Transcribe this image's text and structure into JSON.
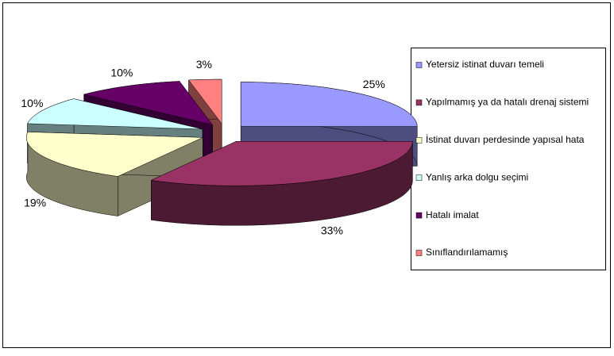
{
  "chart_data": {
    "type": "pie3d",
    "categories": [
      "Yetersiz istinat duvarı temeli",
      "Yapılmamış ya da hatalı drenaj sistemi",
      "İstinat duvarı perdesinde yapısal hata",
      "Yanlış arka dolgu seçimi",
      "Hatalı imalat",
      "Sınıflandırılamamış"
    ],
    "values": [
      25,
      33,
      19,
      10,
      10,
      3
    ],
    "value_labels": [
      "25%",
      "33%",
      "19%",
      "10%",
      "10%",
      "3%"
    ],
    "colors": [
      "#9999ff",
      "#993366",
      "#ffffcc",
      "#ccffff",
      "#660066",
      "#ff8080"
    ],
    "legend": "right"
  }
}
